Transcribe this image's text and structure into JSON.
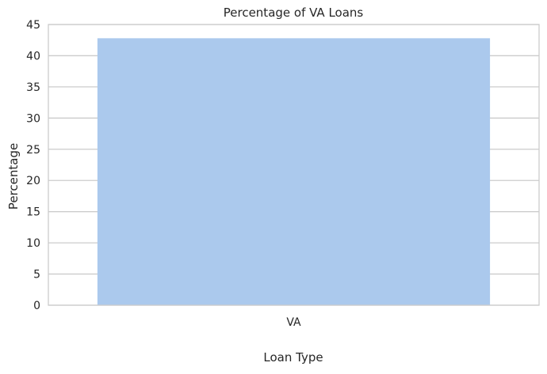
{
  "chart_data": {
    "type": "bar",
    "title": "Percentage of VA Loans",
    "xlabel": "Loan Type",
    "ylabel": "Percentage",
    "categories": [
      "VA"
    ],
    "values": [
      42.8
    ],
    "ylim": [
      0,
      45
    ],
    "yticks": [
      0,
      5,
      10,
      15,
      20,
      25,
      30,
      35,
      40,
      45
    ],
    "grid": "horizontal",
    "colors": {
      "bar": "#abc9ed",
      "grid": "#cccccc",
      "spine": "#cccccc",
      "background": "#ffffff"
    }
  }
}
